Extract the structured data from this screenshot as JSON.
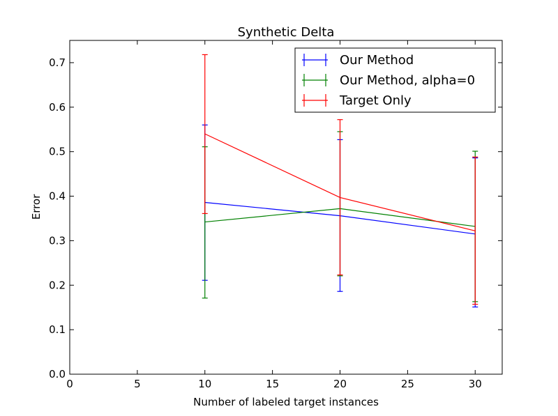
{
  "chart_data": {
    "type": "line",
    "title": "Synthetic Delta",
    "xlabel": "Number of labeled target instances",
    "ylabel": "Error",
    "xlim": [
      0,
      32
    ],
    "ylim": [
      0.0,
      0.75
    ],
    "x_ticks": [
      "0",
      "5",
      "10",
      "15",
      "20",
      "25",
      "30"
    ],
    "y_ticks": [
      "0.0",
      "0.1",
      "0.2",
      "0.3",
      "0.4",
      "0.5",
      "0.6",
      "0.7"
    ],
    "grid": false,
    "legend_position": "upper-right",
    "x": [
      10,
      20,
      30
    ],
    "series": [
      {
        "name": "Our Method",
        "color": "#0000ff",
        "values": [
          0.386,
          0.356,
          0.315
        ],
        "err_low": [
          0.211,
          0.186,
          0.151
        ],
        "err_high": [
          0.56,
          0.527,
          0.486
        ]
      },
      {
        "name": "Our Method, alpha=0",
        "color": "#008000",
        "values": [
          0.342,
          0.372,
          0.332
        ],
        "err_low": [
          0.171,
          0.221,
          0.163
        ],
        "err_high": [
          0.511,
          0.545,
          0.501
        ]
      },
      {
        "name": "Target Only",
        "color": "#ff0000",
        "values": [
          0.54,
          0.397,
          0.322
        ],
        "err_low": [
          0.361,
          0.223,
          0.157
        ],
        "err_high": [
          0.718,
          0.572,
          0.488
        ]
      }
    ]
  }
}
